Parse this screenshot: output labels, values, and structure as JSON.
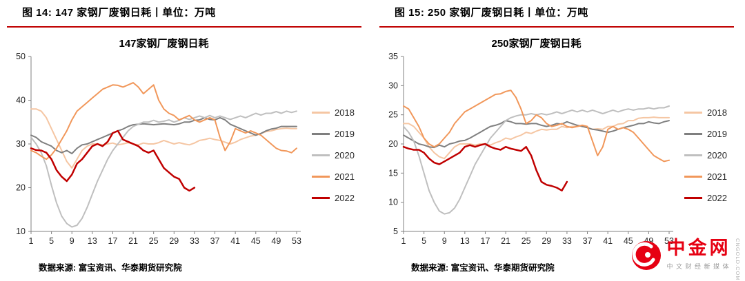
{
  "panels": [
    {
      "header": "图 14: 147 家钢厂废钢日耗丨单位：万吨",
      "source": "数据来源: 富宝资讯、华泰期货研究院"
    },
    {
      "header": "图 15: 250 家钢厂废钢日耗丨单位：万吨",
      "source": "数据来源: 富宝资讯、华泰期货研究院"
    }
  ],
  "watermark": {
    "brand": "中金网",
    "tagline": "中文财经新媒体",
    "domain": "CNGOLD.COM.CN",
    "logo_color": "#E60012"
  },
  "colors": {
    "rule": "#C00000",
    "axis": "#808080",
    "tick_text": "#262626"
  },
  "chart_data": [
    {
      "type": "line",
      "title": "147家钢厂废钢日耗",
      "xlabel": "",
      "ylabel": "",
      "ylim": [
        10,
        50
      ],
      "ytick_step": 10,
      "x_max": 53,
      "xticks": [
        1,
        5,
        9,
        13,
        17,
        21,
        25,
        29,
        33,
        37,
        41,
        45,
        49,
        53
      ],
      "grid": false,
      "legend_position": "right",
      "series": [
        {
          "name": "2018",
          "color": "#F5C6A3",
          "width": 2,
          "values": [
            38,
            38,
            37.5,
            36,
            33.5,
            31,
            28.5,
            26,
            24.5,
            26.5,
            28.5,
            29.5,
            30,
            30,
            29.8,
            30,
            30.2,
            29.8,
            30,
            30.3,
            30,
            29.8,
            30.2,
            30,
            30,
            30.3,
            30.8,
            30.4,
            30,
            30.3,
            30,
            29.8,
            30.2,
            30.8,
            31,
            31.3,
            31,
            30.8,
            30.4,
            30,
            30.4,
            31,
            31.4,
            31.8,
            32,
            32.4,
            32.8,
            33,
            33.3,
            33.5,
            33.6,
            33.5,
            33.5
          ]
        },
        {
          "name": "2019",
          "color": "#7F7F7F",
          "width": 2,
          "values": [
            32,
            31.5,
            30.5,
            30,
            29.5,
            28.5,
            28,
            28.5,
            27.8,
            29,
            29.8,
            30,
            30.5,
            31,
            31.5,
            32,
            32.5,
            33,
            33.4,
            34,
            34.4,
            34.5,
            34.6,
            34.5,
            34.4,
            34.5,
            34.6,
            34.5,
            34.4,
            34.6,
            35,
            35,
            35.4,
            35.5,
            36,
            35.6,
            35.5,
            36,
            35.5,
            34.5,
            34,
            33.5,
            33,
            32.5,
            32,
            32.4,
            33,
            33.4,
            33.6,
            34,
            34,
            34,
            34
          ]
        },
        {
          "name": "2020",
          "color": "#BFBFBF",
          "width": 2,
          "values": [
            31.5,
            30,
            28,
            25,
            20.5,
            16.5,
            13.5,
            11.8,
            11,
            11.4,
            13,
            15.5,
            18.5,
            21.5,
            24,
            26.5,
            28.5,
            30,
            31.5,
            33,
            34,
            34.5,
            35,
            35,
            35.4,
            35,
            35.2,
            35.5,
            35,
            35.4,
            36,
            35.6,
            36,
            36.4,
            36,
            36.5,
            36,
            36.4,
            36,
            35.6,
            36,
            36.4,
            36,
            36.5,
            37,
            36.6,
            37,
            37,
            37.4,
            37,
            37.5,
            37.2,
            37.5
          ]
        },
        {
          "name": "2021",
          "color": "#F1975A",
          "width": 2,
          "values": [
            28.5,
            28,
            27.2,
            26.5,
            27.5,
            29,
            31,
            33,
            35.5,
            37.5,
            38.5,
            39.5,
            40.5,
            41.5,
            42.5,
            43,
            43.5,
            43.4,
            43,
            43.5,
            44,
            43,
            41.5,
            42.5,
            43.5,
            40,
            38,
            37,
            36.5,
            35.5,
            36,
            36.5,
            35.5,
            35,
            35.5,
            36,
            35.5,
            31.5,
            28.5,
            30.5,
            33.5,
            33,
            32.5,
            33,
            32.5,
            32,
            31,
            30,
            29,
            28.5,
            28.4,
            28,
            29
          ]
        },
        {
          "name": "2022",
          "color": "#C00000",
          "width": 2.5,
          "values": [
            29,
            28.6,
            28.5,
            28,
            26.5,
            24,
            22.5,
            21.5,
            23,
            25.5,
            26.5,
            28,
            29.5,
            30,
            29.5,
            30.5,
            32.5,
            33,
            31,
            30.5,
            30,
            29.5,
            28.5,
            28,
            28.5,
            26.5,
            24.5,
            23.5,
            22.5,
            22,
            20,
            19.3,
            20
          ]
        }
      ]
    },
    {
      "type": "line",
      "title": "250家钢厂废钢日耗",
      "xlabel": "",
      "ylabel": "",
      "ylim": [
        5,
        35
      ],
      "ytick_step": 5,
      "x_max": 53,
      "xticks": [
        1,
        5,
        9,
        13,
        17,
        21,
        25,
        29,
        33,
        37,
        41,
        45,
        49,
        53
      ],
      "grid": false,
      "legend_position": "right",
      "series": [
        {
          "name": "2018",
          "color": "#F5C6A3",
          "width": 2,
          "values": [
            23.5,
            23.5,
            23,
            22,
            21,
            19.5,
            18.5,
            17.8,
            17.5,
            18.5,
            19.5,
            20,
            20,
            20,
            19.8,
            20,
            20,
            19.8,
            20.2,
            20.5,
            21,
            20.8,
            21.2,
            21.5,
            22,
            21.8,
            22.2,
            22.5,
            22.4,
            22.5,
            22.5,
            23,
            22.8,
            23,
            23,
            23.2,
            22.8,
            22.5,
            22.6,
            22.5,
            23,
            23,
            23.4,
            23.5,
            24,
            24,
            24.4,
            24.5,
            24.5,
            24.6,
            24.5,
            24.5,
            24.5
          ]
        },
        {
          "name": "2019",
          "color": "#7F7F7F",
          "width": 2,
          "values": [
            21.5,
            21,
            20.5,
            20,
            19.8,
            19.5,
            19.4,
            19.8,
            19.5,
            20,
            20.2,
            20.5,
            20.6,
            21,
            21.5,
            22,
            22.5,
            23,
            23.2,
            23.5,
            24,
            23.8,
            23.5,
            23.5,
            23.4,
            23.5,
            23.5,
            23.2,
            23,
            23.2,
            23.5,
            23.4,
            23.8,
            23.5,
            23.2,
            23,
            22.8,
            22.5,
            22.4,
            22.2,
            22,
            22.2,
            22.5,
            22.8,
            23,
            23.2,
            23.5,
            23.5,
            23.8,
            23.6,
            23.5,
            23.8,
            24
          ]
        },
        {
          "name": "2020",
          "color": "#BFBFBF",
          "width": 2,
          "values": [
            23,
            22,
            20.5,
            18,
            15,
            12,
            10,
            8.5,
            8,
            8.2,
            9,
            10.5,
            12.5,
            14.5,
            16.5,
            18,
            19.5,
            21,
            22,
            23,
            24,
            24.5,
            24.8,
            25,
            25,
            25.2,
            25,
            25.2,
            25,
            25.2,
            25.5,
            25.2,
            25.5,
            25.8,
            25.5,
            25.8,
            25.5,
            25.8,
            25.5,
            25.2,
            25.5,
            25.8,
            25.5,
            25.8,
            26,
            25.8,
            26,
            26,
            26.2,
            26,
            26.2,
            26.2,
            26.5
          ]
        },
        {
          "name": "2021",
          "color": "#F1975A",
          "width": 2,
          "values": [
            26.5,
            26,
            24.5,
            23,
            21,
            20,
            19.5,
            20,
            21,
            22,
            23.5,
            24.5,
            25.5,
            26,
            26.5,
            27,
            27.5,
            28,
            28.5,
            28.6,
            29,
            29.2,
            28,
            26,
            23.5,
            24,
            25,
            24.5,
            23.5,
            23,
            23.2,
            23.5,
            23,
            22.8,
            23,
            23.2,
            23,
            20.5,
            18,
            19.5,
            22.5,
            23,
            22.5,
            22.8,
            22.5,
            22,
            21,
            20,
            19,
            18,
            17.5,
            17,
            17.2
          ]
        },
        {
          "name": "2022",
          "color": "#C00000",
          "width": 2.5,
          "values": [
            19.5,
            19.2,
            19,
            19,
            18.5,
            17.5,
            16.8,
            16.5,
            17,
            17.5,
            18,
            18.5,
            19.5,
            19.8,
            19.5,
            19.8,
            20,
            19.5,
            19.2,
            19,
            19.5,
            19.2,
            19,
            18.8,
            19.5,
            18,
            15.5,
            13.5,
            13,
            12.8,
            12.5,
            12,
            13.5
          ]
        }
      ]
    }
  ]
}
